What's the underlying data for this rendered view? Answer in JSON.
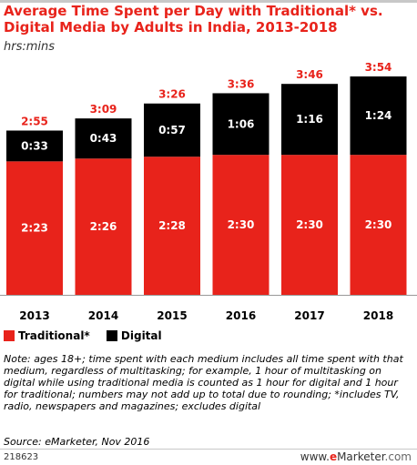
{
  "header": {
    "title": "Average Time Spent per Day with Traditional* vs. Digital Media by Adults in India, 2013-2018",
    "subtitle": "hrs:mins"
  },
  "chart_data": {
    "type": "bar",
    "stacked": true,
    "categories": [
      "2013",
      "2014",
      "2015",
      "2016",
      "2017",
      "2018"
    ],
    "series": [
      {
        "name": "Traditional*",
        "color": "#e8231b",
        "values": [
          143,
          146,
          148,
          150,
          150,
          150
        ],
        "labels": [
          "2:23",
          "2:26",
          "2:28",
          "2:30",
          "2:30",
          "2:30"
        ]
      },
      {
        "name": "Digital",
        "color": "#000000",
        "values": [
          33,
          43,
          57,
          66,
          76,
          84
        ],
        "labels": [
          "0:33",
          "0:43",
          "0:57",
          "1:06",
          "1:16",
          "1:24"
        ]
      }
    ],
    "totals": [
      "2:55",
      "3:09",
      "3:26",
      "3:36",
      "3:46",
      "3:54"
    ],
    "total_color": "#e8231b",
    "ylim": [
      0,
      234
    ],
    "grid": false,
    "legend": "bottom-left"
  },
  "legend": {
    "traditional_label": "Traditional*",
    "digital_label": "Digital"
  },
  "footer": {
    "note": "Note: ages 18+; time spent with each medium includes all time spent with that medium, regardless of multitasking; for example, 1 hour of multitasking on digital while using traditional media is counted as 1 hour for digital and 1 hour for traditional; numbers may not add up to total due to rounding; *includes TV, radio, newspapers and magazines; excludes digital",
    "source": "Source: eMarketer, Nov 2016",
    "chart_id": "218623",
    "brand_prefix": "www.",
    "brand_e": "e",
    "brand_name": "Marketer",
    "brand_suffix": ".com"
  }
}
